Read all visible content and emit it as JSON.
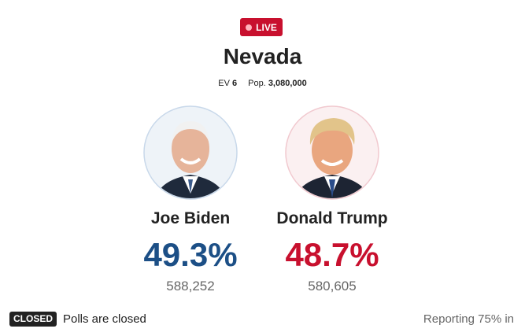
{
  "badge": "LIVE",
  "state": "Nevada",
  "meta": {
    "ev_label": "EV",
    "ev_value": "6",
    "pop_label": "Pop.",
    "pop_value": "3,080,000"
  },
  "candidates": [
    {
      "name": "Joe Biden",
      "percent": "49.3%",
      "votes": "588,252"
    },
    {
      "name": "Donald Trump",
      "percent": "48.7%",
      "votes": "580,605"
    }
  ],
  "footer": {
    "status_badge": "CLOSED",
    "status_text": "Polls are closed",
    "reporting": "Reporting 75% in"
  }
}
